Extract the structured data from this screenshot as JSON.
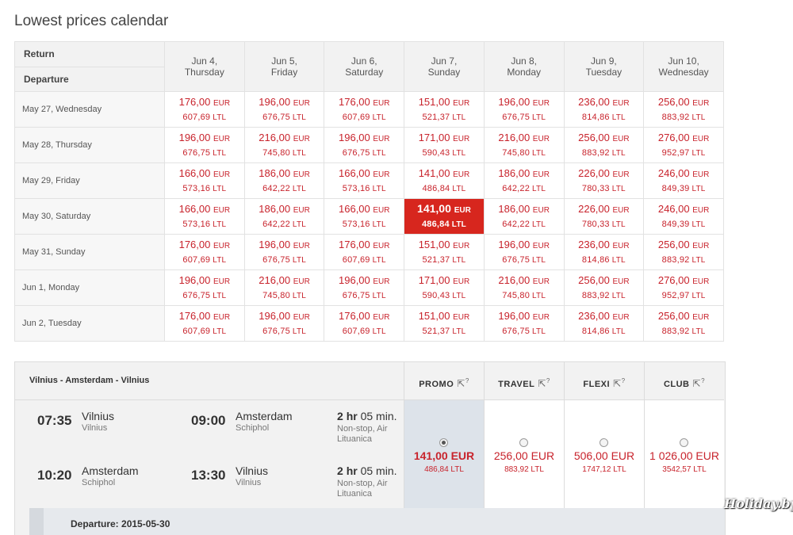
{
  "page_title": "Lowest prices calendar",
  "calendar": {
    "return_label": "Return",
    "departure_label": "Departure",
    "columns": [
      {
        "l1": "Jun 4,",
        "l2": "Thursday"
      },
      {
        "l1": "Jun 5,",
        "l2": "Friday"
      },
      {
        "l1": "Jun 6,",
        "l2": "Saturday"
      },
      {
        "l1": "Jun 7,",
        "l2": "Sunday"
      },
      {
        "l1": "Jun 8,",
        "l2": "Monday"
      },
      {
        "l1": "Jun 9,",
        "l2": "Tuesday"
      },
      {
        "l1": "Jun 10,",
        "l2": "Wednesday"
      }
    ],
    "currency_eur": "EUR",
    "currency_ltl": "LTL",
    "selected": {
      "row": 3,
      "col": 3
    },
    "rows": [
      {
        "label": "May 27, Wednesday",
        "prices": [
          [
            "176,00",
            "607,69"
          ],
          [
            "196,00",
            "676,75"
          ],
          [
            "176,00",
            "607,69"
          ],
          [
            "151,00",
            "521,37"
          ],
          [
            "196,00",
            "676,75"
          ],
          [
            "236,00",
            "814,86"
          ],
          [
            "256,00",
            "883,92"
          ]
        ]
      },
      {
        "label": "May 28, Thursday",
        "prices": [
          [
            "196,00",
            "676,75"
          ],
          [
            "216,00",
            "745,80"
          ],
          [
            "196,00",
            "676,75"
          ],
          [
            "171,00",
            "590,43"
          ],
          [
            "216,00",
            "745,80"
          ],
          [
            "256,00",
            "883,92"
          ],
          [
            "276,00",
            "952,97"
          ]
        ]
      },
      {
        "label": "May 29, Friday",
        "prices": [
          [
            "166,00",
            "573,16"
          ],
          [
            "186,00",
            "642,22"
          ],
          [
            "166,00",
            "573,16"
          ],
          [
            "141,00",
            "486,84"
          ],
          [
            "186,00",
            "642,22"
          ],
          [
            "226,00",
            "780,33"
          ],
          [
            "246,00",
            "849,39"
          ]
        ]
      },
      {
        "label": "May 30, Saturday",
        "prices": [
          [
            "166,00",
            "573,16"
          ],
          [
            "186,00",
            "642,22"
          ],
          [
            "166,00",
            "573,16"
          ],
          [
            "141,00",
            "486,84"
          ],
          [
            "186,00",
            "642,22"
          ],
          [
            "226,00",
            "780,33"
          ],
          [
            "246,00",
            "849,39"
          ]
        ]
      },
      {
        "label": "May 31, Sunday",
        "prices": [
          [
            "176,00",
            "607,69"
          ],
          [
            "196,00",
            "676,75"
          ],
          [
            "176,00",
            "607,69"
          ],
          [
            "151,00",
            "521,37"
          ],
          [
            "196,00",
            "676,75"
          ],
          [
            "236,00",
            "814,86"
          ],
          [
            "256,00",
            "883,92"
          ]
        ]
      },
      {
        "label": "Jun 1, Monday",
        "prices": [
          [
            "196,00",
            "676,75"
          ],
          [
            "216,00",
            "745,80"
          ],
          [
            "196,00",
            "676,75"
          ],
          [
            "171,00",
            "590,43"
          ],
          [
            "216,00",
            "745,80"
          ],
          [
            "256,00",
            "883,92"
          ],
          [
            "276,00",
            "952,97"
          ]
        ]
      },
      {
        "label": "Jun 2, Tuesday",
        "prices": [
          [
            "176,00",
            "607,69"
          ],
          [
            "196,00",
            "676,75"
          ],
          [
            "176,00",
            "607,69"
          ],
          [
            "151,00",
            "521,37"
          ],
          [
            "196,00",
            "676,75"
          ],
          [
            "236,00",
            "814,86"
          ],
          [
            "256,00",
            "883,92"
          ]
        ]
      }
    ]
  },
  "flight": {
    "route": "Vilnius - Amsterdam - Vilnius",
    "fares": [
      {
        "name": "PROMO",
        "eur": "141,00 EUR",
        "ltl": "486,84 LTL",
        "selected": true
      },
      {
        "name": "TRAVEL",
        "eur": "256,00 EUR",
        "ltl": "883,92 LTL",
        "selected": false
      },
      {
        "name": "FLEXI",
        "eur": "506,00 EUR",
        "ltl": "1747,12 LTL",
        "selected": false
      },
      {
        "name": "CLUB",
        "eur": "1 026,00 EUR",
        "ltl": "3542,57 LTL",
        "selected": false
      }
    ],
    "legs": [
      {
        "dep_time": "07:35",
        "dep_city": "Vilnius",
        "dep_airport": "Vilnius",
        "arr_time": "09:00",
        "arr_city": "Amsterdam",
        "arr_airport": "Schiphol",
        "dur_h": "2",
        "dur_h_unit": "hr",
        "dur_m": "05 min.",
        "info": "Non-stop, Air Lituanica"
      },
      {
        "dep_time": "10:20",
        "dep_city": "Amsterdam",
        "dep_airport": "Schiphol",
        "arr_time": "13:30",
        "arr_city": "Vilnius",
        "arr_airport": "Vilnius",
        "dur_h": "2",
        "dur_h_unit": "hr",
        "dur_m": "05 min.",
        "info": "Non-stop, Air Lituanica"
      }
    ],
    "departure_bar": "Departure: 2015-05-30"
  },
  "watermark": "Holiday.by",
  "colors": {
    "price": "#c8232c",
    "selected_cell": "#d7261e",
    "promo_bg": "#dde3ea"
  },
  "icons": {
    "fare_info": "cursor-question-icon"
  }
}
